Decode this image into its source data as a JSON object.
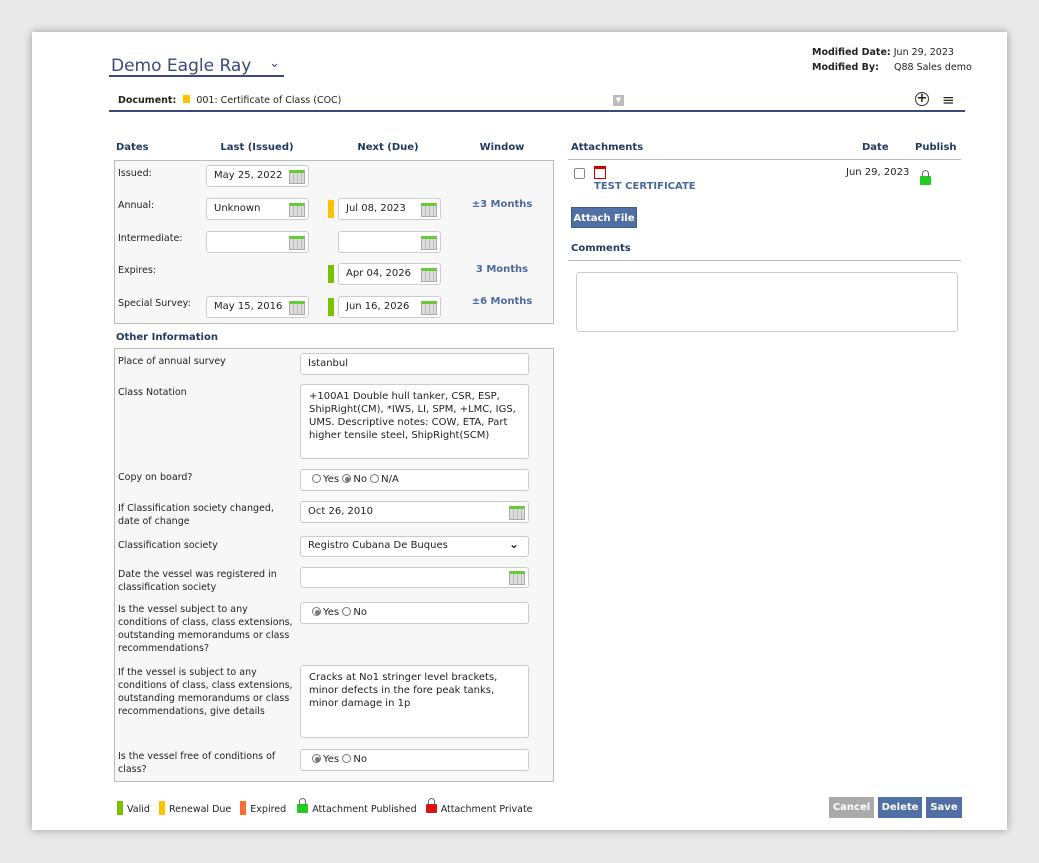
{
  "vessel": {
    "name": "Demo Eagle Ray"
  },
  "meta": {
    "modified_date_label": "Modified Date:",
    "modified_date": "Jun 29, 2023",
    "modified_by_label": "Modified By:",
    "modified_by": "Q88 Sales demo"
  },
  "document": {
    "label": "Document:",
    "value": "001: Certificate of Class (COC)",
    "status_color": "#ffc000"
  },
  "dates": {
    "headers": {
      "dates": "Dates",
      "last": "Last (Issued)",
      "next": "Next (Due)",
      "window": "Window"
    },
    "rows": [
      {
        "label": "Issued:",
        "last": "May 25, 2022"
      },
      {
        "label": "Annual:",
        "last": "Unknown",
        "next": "Jul 08, 2023",
        "status": "renewal-due",
        "window": "±3 Months"
      },
      {
        "label": "Intermediate:",
        "last": "",
        "next": ""
      },
      {
        "label": "Expires:",
        "next": "Apr 04, 2026",
        "status": "valid",
        "window": "3 Months"
      },
      {
        "label": "Special Survey:",
        "last": "May 15, 2016",
        "next": "Jun 16, 2026",
        "status": "valid",
        "window": "±6 Months"
      }
    ]
  },
  "other": {
    "title": "Other Information",
    "place_label": "Place of annual survey",
    "place": "Istanbul",
    "notation_label": "Class Notation",
    "notation": "+100A1 Double hull tanker, CSR, ESP, ShipRight(CM), *IWS, LI, SPM, +LMC, IGS, UMS. Descriptive notes: COW, ETA, Part higher tensile steel, ShipRight(SCM)",
    "copy_label": "Copy on board?",
    "copy_options": [
      "Yes",
      "No",
      "N/A"
    ],
    "copy_selected": "No",
    "changed_label": "If Classification society changed, date of change",
    "changed": "Oct 26, 2010",
    "society_label": "Classification society",
    "society": "Registro Cubana De Buques",
    "registered_label": "Date the vessel was registered in classification society",
    "registered": "",
    "subject_label": "Is the vessel subject to any conditions of class, class extensions, outstanding memorandums or class recommendations?",
    "subject_options": [
      "Yes",
      "No"
    ],
    "subject_selected": "Yes",
    "details_label": "If the vessel is subject to any conditions of class, class extensions, outstanding memorandums or class recommendations, give details",
    "details": "Cracks at No1 stringer level brackets, minor defects in the fore peak tanks, minor damage in 1p",
    "free_label": "Is the vessel free of conditions of class?",
    "free_options": [
      "Yes",
      "No"
    ],
    "free_selected": "Yes"
  },
  "attachments": {
    "headers": {
      "title": "Attachments",
      "date": "Date",
      "publish": "Publish"
    },
    "items": [
      {
        "name": "TEST CERTIFICATE",
        "date": "Jun 29, 2023",
        "published": true
      }
    ],
    "attach_label": "Attach File"
  },
  "comments": {
    "title": "Comments",
    "value": ""
  },
  "legend": [
    {
      "label": "Valid",
      "color": "#7ac000"
    },
    {
      "label": "Renewal Due",
      "color": "#ffc000"
    },
    {
      "label": "Expired",
      "color": "#ff6a33"
    },
    {
      "label": "Attachment Published",
      "color": "#22cc22"
    },
    {
      "label": "Attachment Private",
      "color": "#dd1111"
    }
  ],
  "buttons": {
    "cancel": "Cancel",
    "delete": "Delete",
    "save": "Save"
  },
  "colors": {
    "valid": "#7ac000",
    "renewal_due": "#ffc000",
    "accent": "#4f6fa5"
  }
}
